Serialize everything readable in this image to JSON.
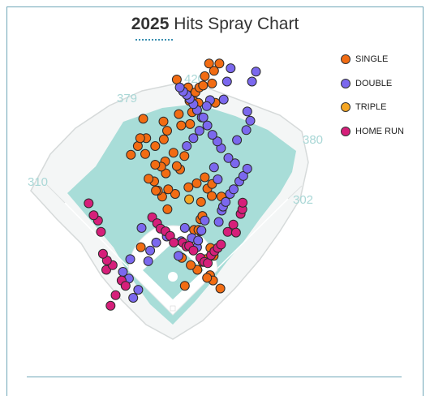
{
  "header": {
    "year": "2025",
    "title_rest": "Hits Spray Chart"
  },
  "colors": {
    "single": "#f26c13",
    "double": "#7b68ee",
    "triple": "#f5a623",
    "home_run": "#d61f7a",
    "field": "#a8ddd8",
    "frame": "#6fa7b8"
  },
  "distances": {
    "left_line": "310",
    "left_center": "379",
    "center": "420",
    "right_center": "380",
    "right_line": "302"
  },
  "chart_data": {
    "type": "scatter",
    "title": "2025 Hits Spray Chart",
    "legend_position": "right",
    "series": [
      {
        "name": "SINGLE",
        "points": [
          [
            -0.96,
            0.98
          ],
          [
            1.12,
            0.56
          ],
          [
            1.21,
            0.48
          ],
          [
            1.43,
            0.36
          ],
          [
            0.9,
            0.76
          ],
          [
            0.74,
            0.64
          ],
          [
            0.36,
            0.4
          ],
          [
            1.03,
            0.52
          ],
          [
            0.99,
            0.8
          ],
          [
            1.23,
            0.85
          ],
          [
            1.13,
            0.97
          ],
          [
            0.82,
            1.22
          ],
          [
            0.64,
            1.24
          ],
          [
            0.83,
            1.4
          ],
          [
            0.77,
            1.24
          ],
          [
            0.27,
            0.82
          ],
          [
            0.89,
            1.45
          ],
          [
            0.54,
            0.71
          ],
          [
            0.85,
            1.66
          ],
          [
            1.46,
            1.74
          ],
          [
            1.04,
            1.86
          ],
          [
            1.18,
            1.93
          ],
          [
            1.17,
            1.75
          ],
          [
            0.96,
            2.03
          ],
          [
            0.47,
            1.88
          ],
          [
            0.72,
            1.94
          ],
          [
            0.07,
            1.78
          ],
          [
            0.22,
            2.15
          ],
          [
            0.35,
            2.35
          ],
          [
            0.12,
            2.2
          ],
          [
            0.02,
            2.4
          ],
          [
            -0.21,
            2.09
          ],
          [
            -0.23,
            2.27
          ],
          [
            -0.14,
            1.85
          ],
          [
            -0.16,
            1.55
          ],
          [
            -0.32,
            1.74
          ],
          [
            -0.45,
            1.83
          ],
          [
            -0.51,
            1.83
          ],
          [
            -0.56,
            1.97
          ],
          [
            -0.73,
            2.01
          ],
          [
            -0.35,
            2.19
          ],
          [
            -0.53,
            2.22
          ],
          [
            -0.27,
            2.6
          ],
          [
            -0.83,
            2.38
          ],
          [
            -0.53,
            2.5
          ],
          [
            -0.8,
            2.62
          ],
          [
            -1.05,
            2.5
          ],
          [
            -0.98,
            2.62
          ],
          [
            -1.26,
            2.37
          ],
          [
            -0.89,
            2.91
          ],
          [
            -0.28,
            2.87
          ],
          [
            -0.17,
            2.73
          ],
          [
            0.25,
            2.81
          ],
          [
            0.18,
            2.98
          ],
          [
            0.52,
            2.83
          ],
          [
            0.58,
            3.01
          ],
          [
            0.5,
            3.18
          ],
          [
            0.65,
            3.17
          ],
          [
            0.77,
            3.15
          ],
          [
            0.37,
            3.32
          ],
          [
            0.46,
            3.38
          ],
          [
            0.68,
            3.31
          ],
          [
            0.8,
            3.38
          ],
          [
            0.91,
            3.41
          ],
          [
            1.18,
            3.44
          ],
          [
            1.28,
            3.15
          ],
          [
            0.12,
            3.5
          ],
          [
            0.96,
            3.55
          ],
          [
            1.24,
            3.63
          ],
          [
            1.09,
            3.74
          ],
          [
            1.4,
            3.74
          ]
        ]
      },
      {
        "name": "DOUBLE",
        "points": [
          [
            -1.04,
            0.34
          ],
          [
            -1.19,
            0.22
          ],
          [
            -1.32,
            0.51
          ],
          [
            -1.5,
            0.61
          ],
          [
            -1.28,
            0.8
          ],
          [
            -0.74,
            0.77
          ],
          [
            -0.68,
            0.93
          ],
          [
            -0.94,
            1.27
          ],
          [
            -0.5,
            1.05
          ],
          [
            -0.18,
            1.14
          ],
          [
            0.17,
            0.85
          ],
          [
            0.25,
            1.07
          ],
          [
            0.36,
            1.27
          ],
          [
            0.57,
            1.12
          ],
          [
            0.73,
            0.98
          ],
          [
            0.76,
            1.08
          ],
          [
            0.86,
            1.23
          ],
          [
            0.96,
            1.38
          ],
          [
            1.47,
            1.53
          ],
          [
            1.51,
            1.59
          ],
          [
            1.59,
            1.66
          ],
          [
            1.72,
            1.78
          ],
          [
            1.83,
            1.85
          ],
          [
            2.0,
            1.97
          ],
          [
            2.12,
            2.05
          ],
          [
            1.87,
            2.24
          ],
          [
            1.67,
            2.32
          ],
          [
            1.45,
            2.47
          ],
          [
            1.34,
            2.57
          ],
          [
            1.19,
            2.67
          ],
          [
            1.04,
            2.81
          ],
          [
            0.87,
            2.93
          ],
          [
            0.73,
            3.04
          ],
          [
            0.62,
            3.13
          ],
          [
            0.51,
            3.21
          ],
          [
            0.42,
            3.27
          ],
          [
            0.31,
            3.32
          ],
          [
            0.21,
            3.38
          ],
          [
            1.12,
            3.19
          ],
          [
            1.02,
            3.1
          ],
          [
            0.92,
            2.93
          ],
          [
            0.8,
            2.73
          ],
          [
            0.62,
            2.62
          ],
          [
            0.42,
            2.5
          ],
          [
            1.35,
            2.0
          ],
          [
            1.24,
            2.18
          ],
          [
            1.38,
            1.36
          ],
          [
            2.24,
            2.16
          ],
          [
            1.93,
            2.59
          ],
          [
            2.21,
            2.74
          ],
          [
            2.33,
            2.88
          ],
          [
            1.53,
            3.2
          ],
          [
            2.38,
            3.47
          ],
          [
            2.5,
            3.62
          ],
          [
            2.24,
            3.02
          ],
          [
            1.63,
            3.47
          ],
          [
            1.74,
            3.67
          ]
        ]
      },
      {
        "name": "TRIPLE",
        "points": [
          [
            0.49,
            1.7
          ]
        ]
      },
      {
        "name": "HOME RUN",
        "points": [
          [
            -1.54,
            0.48
          ],
          [
            -1.42,
            0.4
          ],
          [
            -1.72,
            0.26
          ],
          [
            -1.87,
            0.1
          ],
          [
            -2.0,
            0.64
          ],
          [
            -1.81,
            0.71
          ],
          [
            -1.98,
            0.78
          ],
          [
            -2.1,
            0.88
          ],
          [
            -2.16,
            1.21
          ],
          [
            -2.25,
            1.38
          ],
          [
            -2.38,
            1.46
          ],
          [
            -2.53,
            1.64
          ],
          [
            -0.62,
            1.43
          ],
          [
            -0.47,
            1.34
          ],
          [
            -0.37,
            1.26
          ],
          [
            -0.22,
            1.22
          ],
          [
            -0.08,
            1.15
          ],
          [
            0.03,
            1.05
          ],
          [
            0.3,
            1.05
          ],
          [
            0.41,
            0.99
          ],
          [
            0.49,
            1.0
          ],
          [
            0.62,
            0.93
          ],
          [
            0.83,
            0.82
          ],
          [
            0.95,
            0.76
          ],
          [
            1.05,
            0.74
          ],
          [
            1.15,
            0.86
          ],
          [
            1.25,
            0.92
          ],
          [
            1.35,
            0.97
          ],
          [
            1.45,
            1.02
          ],
          [
            1.65,
            1.21
          ],
          [
            1.82,
            1.32
          ],
          [
            2.04,
            1.48
          ],
          [
            2.09,
            1.55
          ],
          [
            2.1,
            1.65
          ],
          [
            1.9,
            1.2
          ]
        ]
      }
    ]
  },
  "legend": {
    "single": "SINGLE",
    "double": "DOUBLE",
    "triple": "TRIPLE",
    "home_run": "HOME RUN"
  }
}
